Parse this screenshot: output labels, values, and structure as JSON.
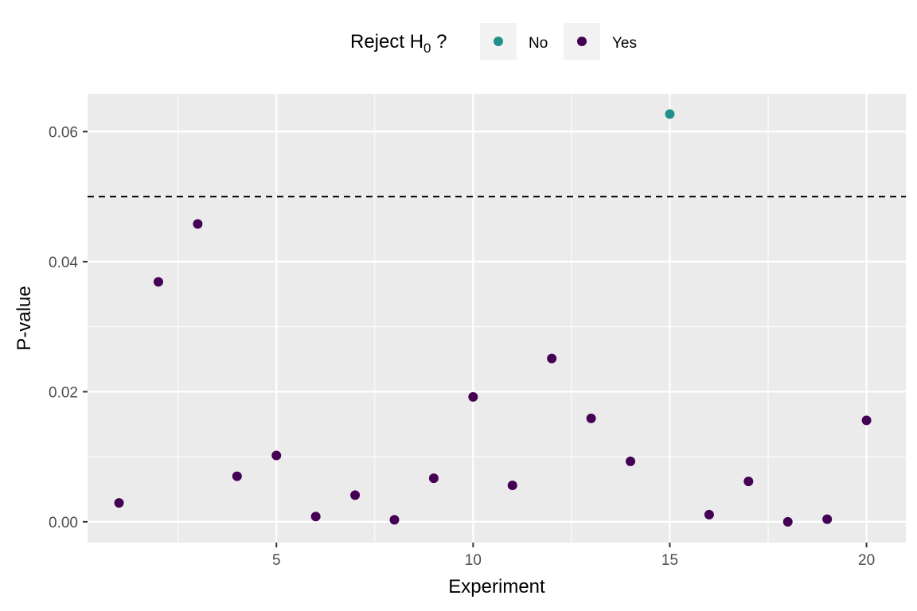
{
  "chart_data": {
    "type": "scatter",
    "title": "",
    "xlabel": "Experiment",
    "ylabel": "P-value",
    "xlim": [
      0.2,
      21
    ],
    "ylim": [
      -0.0032,
      0.0658
    ],
    "x_ticks": [
      5,
      10,
      15,
      20
    ],
    "y_ticks": [
      0.0,
      0.02,
      0.04,
      0.06
    ],
    "x_tick_labels": [
      "5",
      "10",
      "15",
      "20"
    ],
    "y_tick_labels": [
      "0.00",
      "0.02",
      "0.04",
      "0.06"
    ],
    "grid": true,
    "reference_line": {
      "y": 0.05,
      "style": "dashed",
      "color": "#000000"
    },
    "legend": {
      "title_text": "Reject H",
      "title_subscript": "0",
      "title_suffix": " ?",
      "position": "top",
      "entries": [
        {
          "label": "No",
          "color": "#21908C"
        },
        {
          "label": "Yes",
          "color": "#440154"
        }
      ]
    },
    "series": [
      {
        "name": "No",
        "color": "#21908C",
        "points": [
          {
            "x": 15,
            "y": 0.0627
          }
        ]
      },
      {
        "name": "Yes",
        "color": "#440154",
        "points": [
          {
            "x": 1,
            "y": 0.0029
          },
          {
            "x": 2,
            "y": 0.0369
          },
          {
            "x": 3,
            "y": 0.0458
          },
          {
            "x": 4,
            "y": 0.007
          },
          {
            "x": 5,
            "y": 0.0102
          },
          {
            "x": 6,
            "y": 0.0008
          },
          {
            "x": 7,
            "y": 0.0041
          },
          {
            "x": 8,
            "y": 0.0003
          },
          {
            "x": 9,
            "y": 0.0067
          },
          {
            "x": 10,
            "y": 0.0192
          },
          {
            "x": 11,
            "y": 0.0056
          },
          {
            "x": 12,
            "y": 0.0251
          },
          {
            "x": 13,
            "y": 0.0159
          },
          {
            "x": 14,
            "y": 0.0093
          },
          {
            "x": 16,
            "y": 0.0011
          },
          {
            "x": 17,
            "y": 0.0062
          },
          {
            "x": 18,
            "y": 0.0
          },
          {
            "x": 19,
            "y": 0.0004
          },
          {
            "x": 20,
            "y": 0.0156
          }
        ]
      }
    ]
  },
  "colors": {
    "panel_background": "#EBEBEB",
    "grid_major": "#FFFFFF",
    "grid_minor": "#F5F5F5",
    "legend_key_background": "#F2F2F2"
  }
}
